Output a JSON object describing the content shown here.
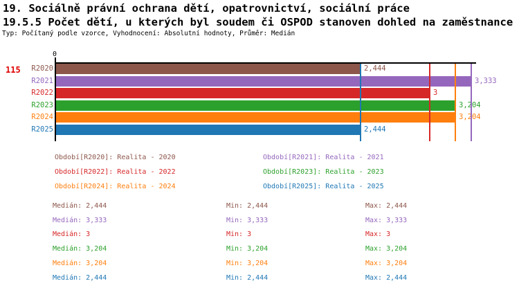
{
  "header": {
    "title_line1": "19. Sociálně právní ochrana dětí, opatrovnictví, sociální práce",
    "title_line2": "19.5.5 Počet dětí, u kterých byl soudem či OSPOD stanoven dohled na zaměstnance",
    "meta_line": "Typ: Počítaný podle vzorce, Vyhodnocení: Absolutní hodnoty, Průměr: Medián"
  },
  "row_marker": "115",
  "axis": {
    "zero_tick_label": "0"
  },
  "chart_data": {
    "type": "bar",
    "orientation": "horizontal",
    "categories": [
      "R2020",
      "R2021",
      "R2022",
      "R2023",
      "R2024",
      "R2025"
    ],
    "values": [
      2.444,
      3.333,
      3,
      3.204,
      3.204,
      2.444
    ],
    "value_labels": [
      "2,444",
      "3,333",
      "3",
      "3,204",
      "3,204",
      "2,444"
    ],
    "colors": [
      "#8c564b",
      "#9467bd",
      "#d62728",
      "#2ca02c",
      "#ff7f0e",
      "#1f77b4"
    ],
    "median_values": [
      2.444,
      3.333,
      3,
      3.204,
      3.204,
      2.444
    ],
    "xlim": [
      0,
      3.38
    ],
    "grid": false,
    "legend_position": "below"
  },
  "legend": {
    "left_column": [
      {
        "label": "Období[R2020]: Realita - 2020",
        "color": "#8c564b"
      },
      {
        "label": "Období[R2022]: Realita - 2022",
        "color": "#d62728"
      },
      {
        "label": "Období[R2024]: Realita - 2024",
        "color": "#ff7f0e"
      }
    ],
    "right_column": [
      {
        "label": "Období[R2021]: Realita - 2021",
        "color": "#9467bd"
      },
      {
        "label": "Období[R2023]: Realita - 2023",
        "color": "#2ca02c"
      },
      {
        "label": "Období[R2025]: Realita - 2025",
        "color": "#1f77b4"
      }
    ]
  },
  "stats": {
    "rows": [
      {
        "color": "#8c564b",
        "median": "Medián: 2,444",
        "min": "Min: 2,444",
        "max": "Max: 2,444"
      },
      {
        "color": "#9467bd",
        "median": "Medián: 3,333",
        "min": "Min: 3,333",
        "max": "Max: 3,333"
      },
      {
        "color": "#d62728",
        "median": "Medián: 3",
        "min": "Min: 3",
        "max": "Max: 3"
      },
      {
        "color": "#2ca02c",
        "median": "Medián: 3,204",
        "min": "Min: 3,204",
        "max": "Max: 3,204"
      },
      {
        "color": "#ff7f0e",
        "median": "Medián: 3,204",
        "min": "Min: 3,204",
        "max": "Max: 3,204"
      },
      {
        "color": "#1f77b4",
        "median": "Medián: 2,444",
        "min": "Min: 2,444",
        "max": "Max: 2,444"
      }
    ]
  }
}
